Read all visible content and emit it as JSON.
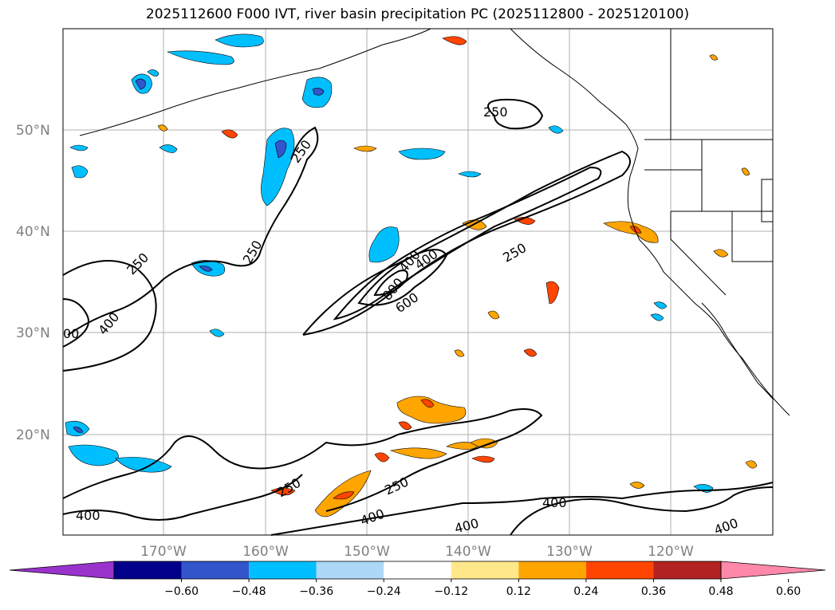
{
  "title": "2025112600 F000 IVT, river basin precipitation PC (2025112800 - 2025120100)",
  "lat_labels": [
    "50°N",
    "40°N",
    "30°N",
    "20°N"
  ],
  "lon_labels": [
    "170°W",
    "160°W",
    "150°W",
    "140°W",
    "130°W",
    "120°W"
  ],
  "contour_labels": [
    "250",
    "250",
    "250",
    "250",
    "250",
    "250",
    "250",
    "400",
    "400",
    "400",
    "400",
    "400",
    "400",
    "400",
    "600",
    "800",
    "400",
    "00"
  ],
  "colorbar": {
    "colors": [
      "#9933cc",
      "#00008b",
      "#3355cc",
      "#00bfff",
      "#add8f6",
      "#ffffff",
      "#ffe88a",
      "#ffa500",
      "#ff4500",
      "#b22222",
      "#ff88aa"
    ],
    "ticks": [
      "−0.60",
      "−0.48",
      "−0.36",
      "−0.24",
      "−0.12",
      "0.12",
      "0.24",
      "0.36",
      "0.48",
      "0.60"
    ]
  }
}
